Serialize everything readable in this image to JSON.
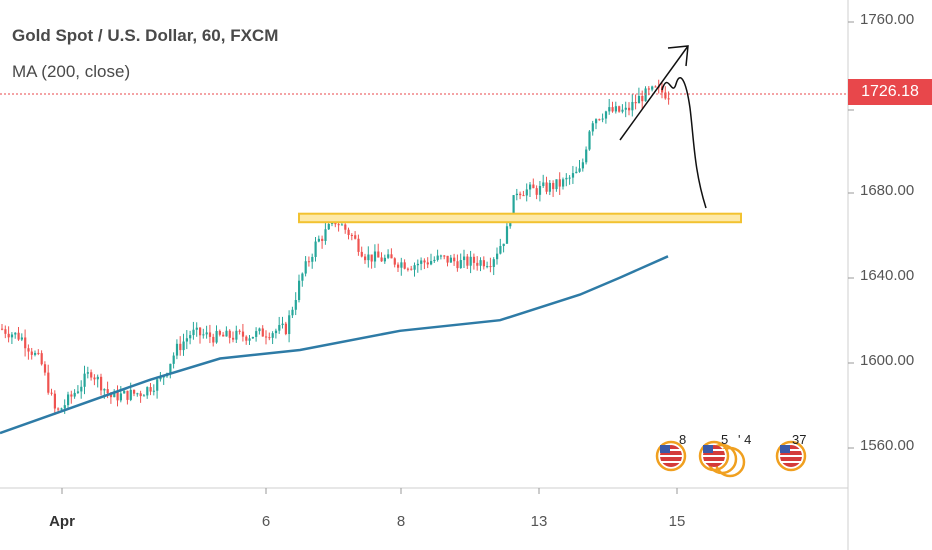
{
  "header": {
    "symbol_title": "Gold Spot / U.S. Dollar, 60, FXCM",
    "indicator_label": "MA (200, close)"
  },
  "price_badge": "1726.18",
  "events": [
    {
      "label": "8"
    },
    {
      "label": "5"
    },
    {
      "label": "' 4"
    },
    {
      "label": "37"
    }
  ],
  "colors": {
    "up": "#26a69a",
    "down": "#ef5350",
    "ma": "#2e7ba6",
    "level_line": "#e8474b",
    "zone_fill": "#fde9a8",
    "zone_border": "#f2c230"
  },
  "chart_data": {
    "type": "candlestick",
    "title": "Gold Spot / U.S. Dollar, 60, FXCM",
    "x_ticks": [
      "Apr",
      "6",
      "8",
      "13",
      "15"
    ],
    "y_ticks": [
      "1760.00",
      "1680.00",
      "1640.00",
      "1600.00",
      "1560.00"
    ],
    "ylim": [
      1534,
      1770
    ],
    "last_price": 1726.18,
    "resistance_zone": [
      1666,
      1670
    ],
    "ma_label": "MA (200, close)",
    "ma_series": [
      [
        0,
        1567
      ],
      [
        60,
        1577
      ],
      [
        150,
        1592
      ],
      [
        220,
        1602
      ],
      [
        300,
        1606
      ],
      [
        400,
        1615
      ],
      [
        500,
        1620
      ],
      [
        580,
        1632
      ],
      [
        620,
        1640
      ],
      [
        668,
        1650
      ]
    ],
    "price_path": [
      [
        0,
        1616
      ],
      [
        20,
        1612
      ],
      [
        40,
        1600
      ],
      [
        55,
        1576
      ],
      [
        70,
        1584
      ],
      [
        90,
        1596
      ],
      [
        110,
        1584
      ],
      [
        140,
        1586
      ],
      [
        160,
        1592
      ],
      [
        175,
        1606
      ],
      [
        190,
        1614
      ],
      [
        215,
        1612
      ],
      [
        250,
        1613
      ],
      [
        285,
        1616
      ],
      [
        300,
        1640
      ],
      [
        315,
        1656
      ],
      [
        335,
        1667
      ],
      [
        350,
        1660
      ],
      [
        365,
        1650
      ],
      [
        390,
        1648
      ],
      [
        410,
        1646
      ],
      [
        440,
        1649
      ],
      [
        460,
        1647
      ],
      [
        490,
        1648
      ],
      [
        505,
        1660
      ],
      [
        515,
        1681
      ],
      [
        535,
        1681
      ],
      [
        560,
        1684
      ],
      [
        580,
        1690
      ],
      [
        590,
        1714
      ],
      [
        605,
        1718
      ],
      [
        625,
        1718
      ],
      [
        640,
        1725
      ],
      [
        655,
        1728
      ],
      [
        668,
        1726
      ]
    ]
  }
}
